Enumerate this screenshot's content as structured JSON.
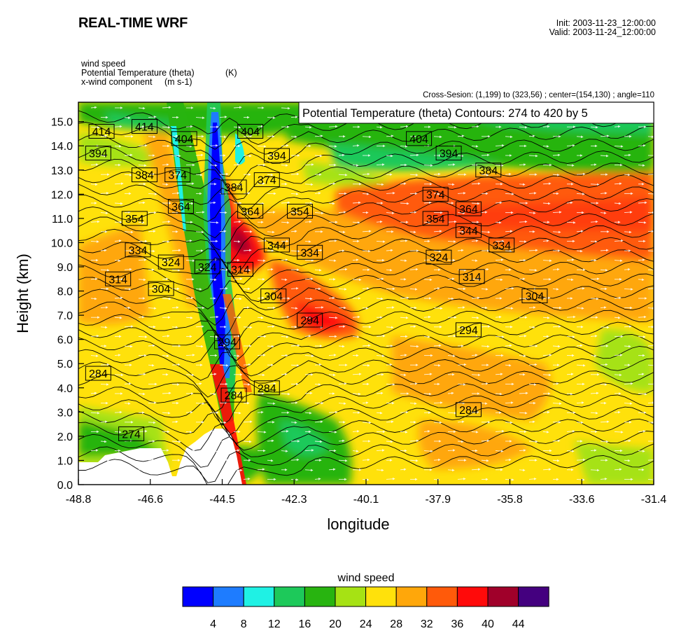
{
  "header": {
    "title": "REAL-TIME WRF",
    "init": "Init: 2003-11-23_12:00:00",
    "valid": "Valid: 2003-11-24_12:00:00"
  },
  "fields": {
    "line1": "wind speed",
    "line2": "Potential Temperature (theta)",
    "line2_unit": "(K)",
    "line3": "x-wind component",
    "line3_unit": "(m s-1)"
  },
  "cross_section": "Cross-Sesion: (1,199) to (323,56) ; center=(154,130) ; angle=110",
  "contour_info": "Potential Temperature (theta)   Contours: 274 to 420 by 5",
  "chart_data": {
    "type": "heatmap",
    "xlabel": "longitude",
    "ylabel": "Height (km)",
    "xlim": [
      -48.8,
      -31.4
    ],
    "ylim": [
      0.0,
      15.8
    ],
    "x_ticks": [
      "-48.8",
      "-46.6",
      "-44.5",
      "-42.3",
      "-40.1",
      "-37.9",
      "-35.8",
      "-33.6",
      "-31.4"
    ],
    "y_ticks": [
      "0.0",
      "1.0",
      "2.0",
      "3.0",
      "4.0",
      "5.0",
      "6.0",
      "7.0",
      "8.0",
      "9.0",
      "10.0",
      "11.0",
      "12.0",
      "13.0",
      "14.0",
      "15.0"
    ],
    "legend": {
      "title": "wind speed",
      "labels": [
        "4",
        "8",
        "12",
        "16",
        "20",
        "24",
        "28",
        "32",
        "36",
        "40",
        "44"
      ],
      "colors": [
        "#0000ff",
        "#1e7cff",
        "#1ff1e4",
        "#1dc95a",
        "#28b410",
        "#a6e214",
        "#ffe10b",
        "#ffa70a",
        "#ff5a0a",
        "#ff0a0a",
        "#a0002a",
        "#44007f"
      ]
    },
    "theta_contour_labels": [
      {
        "label": "414",
        "lon": -48.1,
        "z": 14.6
      },
      {
        "label": "414",
        "lon": -46.8,
        "z": 14.8
      },
      {
        "label": "404",
        "lon": -45.6,
        "z": 14.3
      },
      {
        "label": "404",
        "lon": -43.6,
        "z": 14.6
      },
      {
        "label": "404",
        "lon": -38.5,
        "z": 14.3
      },
      {
        "label": "394",
        "lon": -48.2,
        "z": 13.7
      },
      {
        "label": "394",
        "lon": -42.8,
        "z": 13.6
      },
      {
        "label": "394",
        "lon": -37.6,
        "z": 13.7
      },
      {
        "label": "384",
        "lon": -46.8,
        "z": 12.8
      },
      {
        "label": "384",
        "lon": -44.1,
        "z": 12.3
      },
      {
        "label": "384",
        "lon": -36.4,
        "z": 13.0
      },
      {
        "label": "374",
        "lon": -45.8,
        "z": 12.8
      },
      {
        "label": "374",
        "lon": -43.1,
        "z": 12.6
      },
      {
        "label": "374",
        "lon": -38.0,
        "z": 12.0
      },
      {
        "label": "364",
        "lon": -45.7,
        "z": 11.5
      },
      {
        "label": "364",
        "lon": -43.6,
        "z": 11.3
      },
      {
        "label": "364",
        "lon": -37.0,
        "z": 11.4
      },
      {
        "label": "354",
        "lon": -47.1,
        "z": 11.0
      },
      {
        "label": "354",
        "lon": -42.1,
        "z": 11.3
      },
      {
        "label": "354",
        "lon": -38.0,
        "z": 11.0
      },
      {
        "label": "344",
        "lon": -42.8,
        "z": 9.9
      },
      {
        "label": "344",
        "lon": -37.0,
        "z": 10.5
      },
      {
        "label": "334",
        "lon": -47.0,
        "z": 9.7
      },
      {
        "label": "334",
        "lon": -41.8,
        "z": 9.6
      },
      {
        "label": "334",
        "lon": -36.0,
        "z": 9.9
      },
      {
        "label": "324",
        "lon": -46.0,
        "z": 9.2
      },
      {
        "label": "324",
        "lon": -44.9,
        "z": 9.0
      },
      {
        "label": "324",
        "lon": -37.9,
        "z": 9.4
      },
      {
        "label": "314",
        "lon": -47.6,
        "z": 8.5
      },
      {
        "label": "314",
        "lon": -43.9,
        "z": 8.9
      },
      {
        "label": "314",
        "lon": -36.9,
        "z": 8.6
      },
      {
        "label": "304",
        "lon": -46.3,
        "z": 8.1
      },
      {
        "label": "304",
        "lon": -42.9,
        "z": 7.8
      },
      {
        "label": "304",
        "lon": -35.0,
        "z": 7.8
      },
      {
        "label": "294",
        "lon": -41.8,
        "z": 6.8
      },
      {
        "label": "294",
        "lon": -44.3,
        "z": 5.9
      },
      {
        "label": "294",
        "lon": -37.0,
        "z": 6.4
      },
      {
        "label": "284",
        "lon": -48.2,
        "z": 4.6
      },
      {
        "label": "284",
        "lon": -44.1,
        "z": 3.7
      },
      {
        "label": "284",
        "lon": -43.1,
        "z": 4.0
      },
      {
        "label": "284",
        "lon": -37.0,
        "z": 3.1
      },
      {
        "label": "274",
        "lon": -47.2,
        "z": 2.1
      }
    ]
  }
}
